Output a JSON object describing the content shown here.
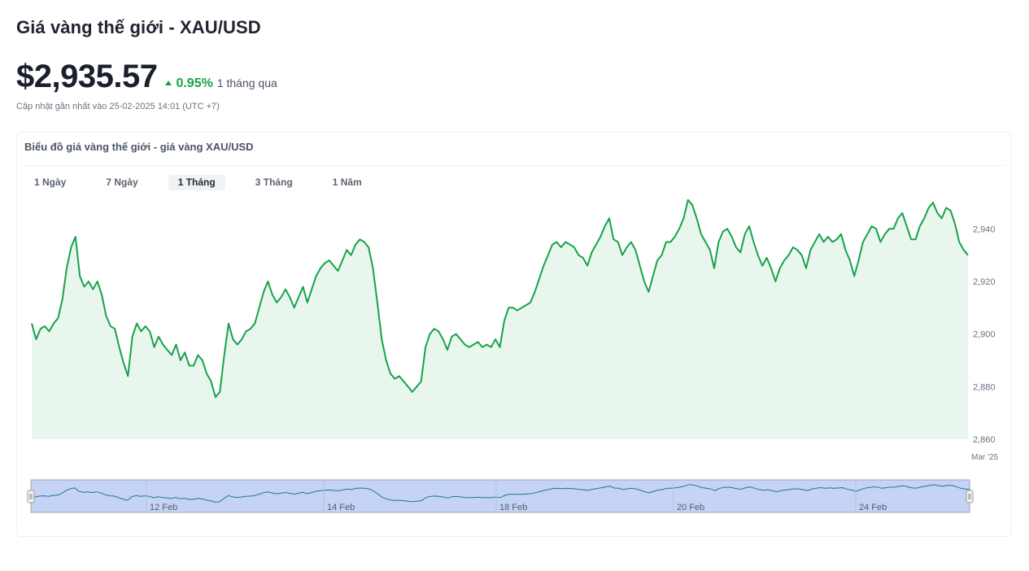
{
  "page": {
    "title": "Giá vàng thế giới - XAU/USD",
    "price": "$2,935.57",
    "change": "0.95%",
    "change_direction": "up",
    "change_period": "1 tháng qua",
    "updated": "Cập nhật gần nhất vào 25-02-2025 14:01 (UTC +7)"
  },
  "card": {
    "title": "Biểu đồ giá vàng thế giới - giá vàng XAU/USD",
    "tabs": [
      {
        "label": "1 Ngày",
        "active": false
      },
      {
        "label": "7 Ngày",
        "active": false
      },
      {
        "label": "1 Tháng",
        "active": true
      },
      {
        "label": "3 Tháng",
        "active": false
      },
      {
        "label": "1 Năm",
        "active": false
      }
    ]
  },
  "colors": {
    "line": "#16a34a",
    "area": "#e9f6ee",
    "navigator_fill": "#c5d3f6",
    "up": "#16a34a"
  },
  "chart_data": {
    "type": "area",
    "ylim": [
      2860,
      2950
    ],
    "y_ticks": [
      "2,860",
      "2,880",
      "2,900",
      "2,920",
      "2,940"
    ],
    "x_end_label": "Mar '25",
    "navigator_labels": [
      "12 Feb",
      "14 Feb",
      "18 Feb",
      "20 Feb",
      "24 Feb"
    ],
    "series": [
      {
        "values": [
          2904,
          2898,
          2902,
          2903,
          2901,
          2904,
          2906,
          2913,
          2925,
          2933,
          2937,
          2922,
          2918,
          2920,
          2917,
          2920,
          2915,
          2907,
          2903,
          2902,
          2895,
          2889,
          2884,
          2899,
          2904,
          2901,
          2903,
          2901,
          2895,
          2899,
          2896,
          2894,
          2892,
          2896,
          2890,
          2893,
          2888,
          2888,
          2892,
          2890,
          2885,
          2882,
          2876,
          2878,
          2892,
          2904,
          2898,
          2896,
          2898,
          2901,
          2902,
          2904,
          2910,
          2916,
          2920,
          2915,
          2912,
          2914,
          2917,
          2914,
          2910,
          2914,
          2918,
          2912,
          2917,
          2922,
          2925,
          2927,
          2928,
          2926,
          2924,
          2928,
          2932,
          2930,
          2934,
          2936,
          2935,
          2933,
          2925,
          2912,
          2898,
          2890,
          2885,
          2883,
          2884,
          2882,
          2880,
          2878,
          2880,
          2882,
          2895,
          2900,
          2902,
          2901,
          2898,
          2894,
          2899,
          2900,
          2898,
          2896,
          2895,
          2896,
          2897,
          2895,
          2896,
          2895,
          2898,
          2895,
          2905,
          2910,
          2910,
          2909,
          2910,
          2911,
          2912,
          2916,
          2921,
          2926,
          2930,
          2934,
          2935,
          2933,
          2935,
          2934,
          2933,
          2930,
          2929,
          2926,
          2931,
          2934,
          2937,
          2941,
          2944,
          2936,
          2935,
          2930,
          2933,
          2935,
          2932,
          2926,
          2920,
          2916,
          2922,
          2928,
          2930,
          2935,
          2935,
          2937,
          2940,
          2944,
          2951,
          2949,
          2944,
          2938,
          2935,
          2932,
          2925,
          2935,
          2939,
          2940,
          2937,
          2933,
          2931,
          2938,
          2941,
          2935,
          2930,
          2926,
          2929,
          2925,
          2920,
          2925,
          2928,
          2930,
          2933,
          2932,
          2930,
          2925,
          2932,
          2935,
          2938,
          2935,
          2937,
          2935,
          2936,
          2938,
          2932,
          2928,
          2922,
          2928,
          2935,
          2938,
          2941,
          2940,
          2935,
          2938,
          2940,
          2940,
          2944,
          2946,
          2941,
          2936,
          2936,
          2941,
          2944,
          2948,
          2950,
          2946,
          2944,
          2948,
          2947,
          2942,
          2935,
          2932,
          2930
        ],
        "end_value": 2935.57
      }
    ]
  }
}
